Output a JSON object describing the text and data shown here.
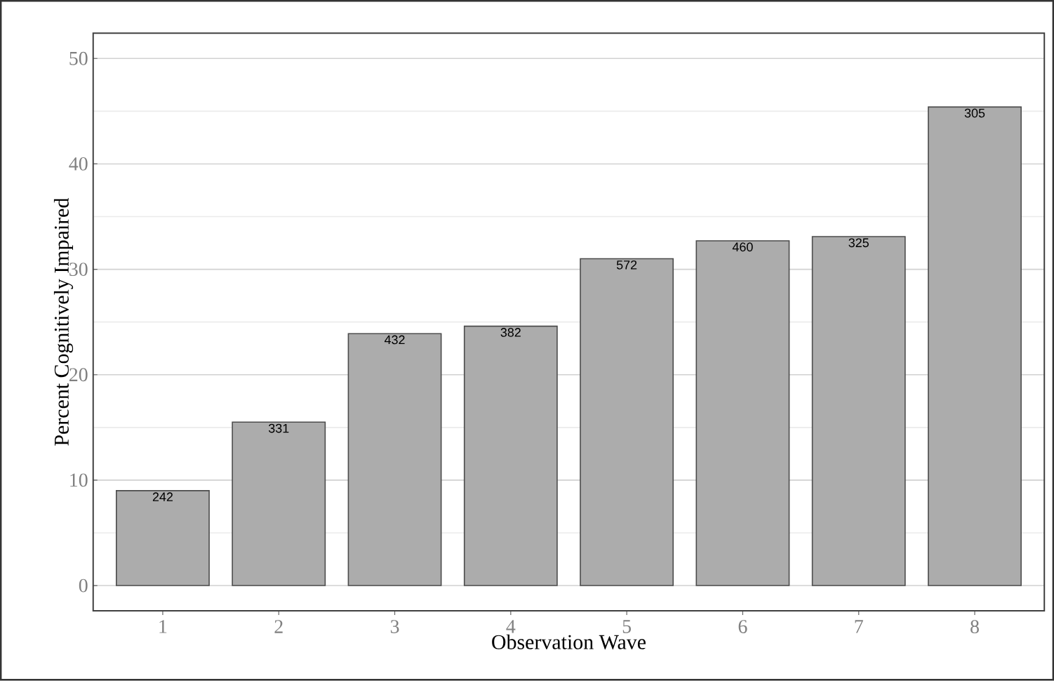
{
  "chart_data": {
    "type": "bar",
    "xlabel": "Observation Wave",
    "ylabel": "Percent Cognitively Impaired",
    "categories": [
      "1",
      "2",
      "3",
      "4",
      "5",
      "6",
      "7",
      "8"
    ],
    "values": [
      9.0,
      15.5,
      23.9,
      24.6,
      31.0,
      32.7,
      33.1,
      45.4
    ],
    "annotations": [
      {
        "text": "242",
        "x": "1",
        "y": 9.0
      },
      {
        "text": "331",
        "x": "2",
        "y": 15.5
      },
      {
        "text": "432",
        "x": "3",
        "y": 23.9
      },
      {
        "text": "382",
        "x": "4",
        "y": 24.6
      },
      {
        "text": "572",
        "x": "5",
        "y": 31.0
      },
      {
        "text": "460",
        "x": "6",
        "y": 32.7
      },
      {
        "text": "325",
        "x": "7",
        "y": 33.1
      },
      {
        "text": "305",
        "x": "8",
        "y": 45.4
      }
    ],
    "color": "#acacac",
    "ylim": [
      -2.4,
      52.4
    ],
    "yticks": [
      0,
      10,
      20,
      30,
      40,
      50
    ],
    "grid": "y"
  }
}
